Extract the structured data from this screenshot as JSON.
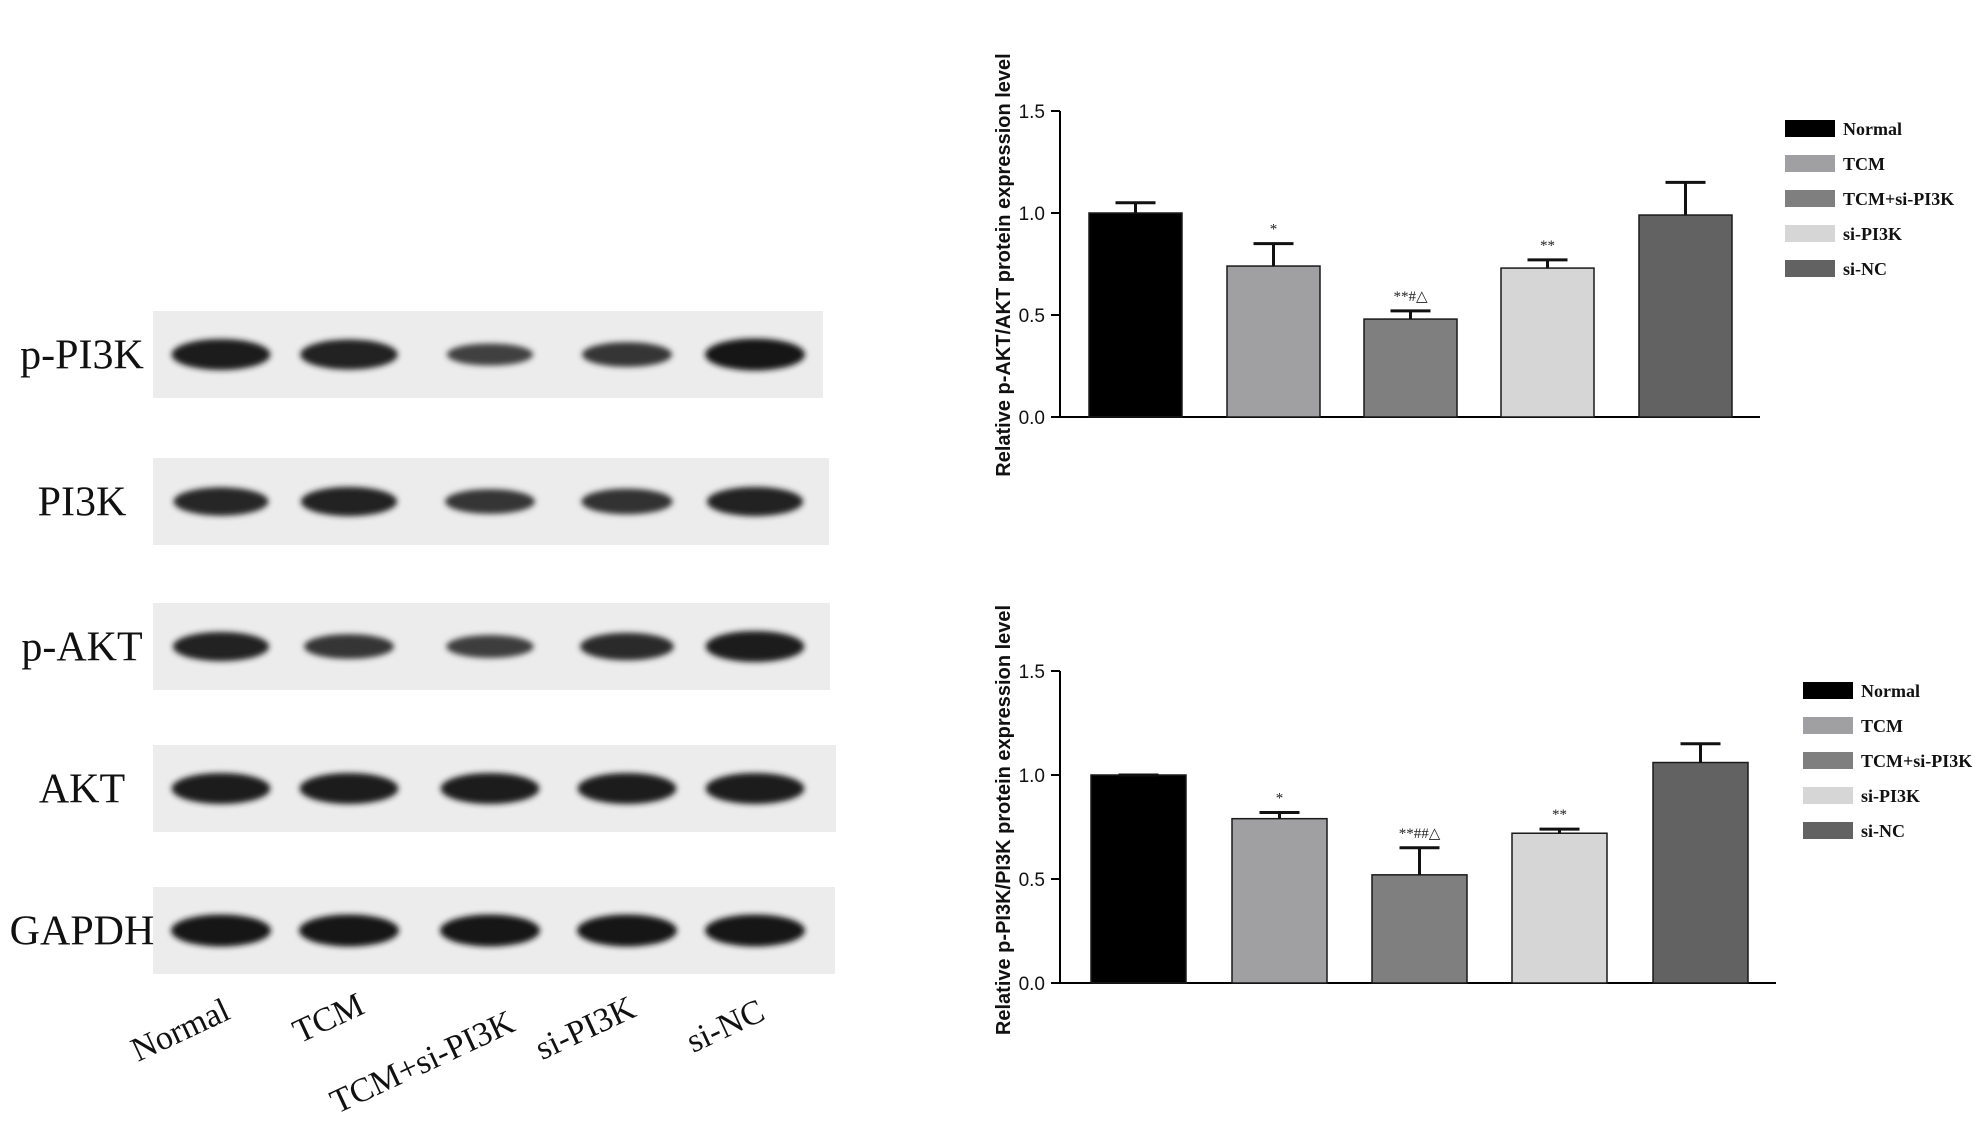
{
  "blot": {
    "lanes": [
      "Normal",
      "TCM",
      "TCM+si-PI3K",
      "si-PI3K",
      "si-NC"
    ],
    "rows": [
      {
        "label": "p-PI3K",
        "band_intensity": [
          0.95,
          0.9,
          0.45,
          0.6,
          1.0
        ]
      },
      {
        "label": "PI3K",
        "band_intensity": [
          0.8,
          0.85,
          0.6,
          0.65,
          0.85
        ]
      },
      {
        "label": "p-AKT",
        "band_intensity": [
          0.85,
          0.6,
          0.5,
          0.75,
          0.95
        ]
      },
      {
        "label": "AKT",
        "band_intensity": [
          0.95,
          0.95,
          0.95,
          0.95,
          0.95
        ]
      },
      {
        "label": "GAPDH",
        "band_intensity": [
          1.0,
          1.0,
          1.0,
          1.0,
          1.0
        ]
      }
    ]
  },
  "chart_data": [
    {
      "type": "bar",
      "title": "",
      "xlabel": "",
      "ylabel": "Relative p-AKT/AKT protein expression level",
      "ylim": [
        0,
        1.5
      ],
      "yticks": [
        "0.0",
        "0.5",
        "1.0",
        "1.5"
      ],
      "categories": [
        "Normal",
        "TCM",
        "TCM+si-PI3K",
        "si-PI3K",
        "si-NC"
      ],
      "values": [
        1.0,
        0.74,
        0.48,
        0.73,
        0.99
      ],
      "errors": [
        0.05,
        0.11,
        0.04,
        0.04,
        0.16
      ],
      "annotations": [
        "",
        "*",
        "**#△",
        "**",
        ""
      ],
      "colors": [
        "#000000",
        "#a0a0a2",
        "#7f7f7f",
        "#d6d6d6",
        "#626262"
      ],
      "legend_position": "right",
      "grid": false
    },
    {
      "type": "bar",
      "title": "",
      "xlabel": "",
      "ylabel": "Relative p-PI3K/PI3K protein expression level",
      "ylim": [
        0,
        1.5
      ],
      "yticks": [
        "0.0",
        "0.5",
        "1.0",
        "1.5"
      ],
      "categories": [
        "Normal",
        "TCM",
        "TCM+si-PI3K",
        "si-PI3K",
        "si-NC"
      ],
      "values": [
        1.0,
        0.79,
        0.52,
        0.72,
        1.06
      ],
      "errors": [
        0.0,
        0.03,
        0.13,
        0.02,
        0.09
      ],
      "annotations": [
        "",
        "*",
        "**##△",
        "**",
        ""
      ],
      "colors": [
        "#000000",
        "#a0a0a2",
        "#7f7f7f",
        "#d6d6d6",
        "#626262"
      ],
      "legend_position": "right",
      "grid": false
    }
  ]
}
